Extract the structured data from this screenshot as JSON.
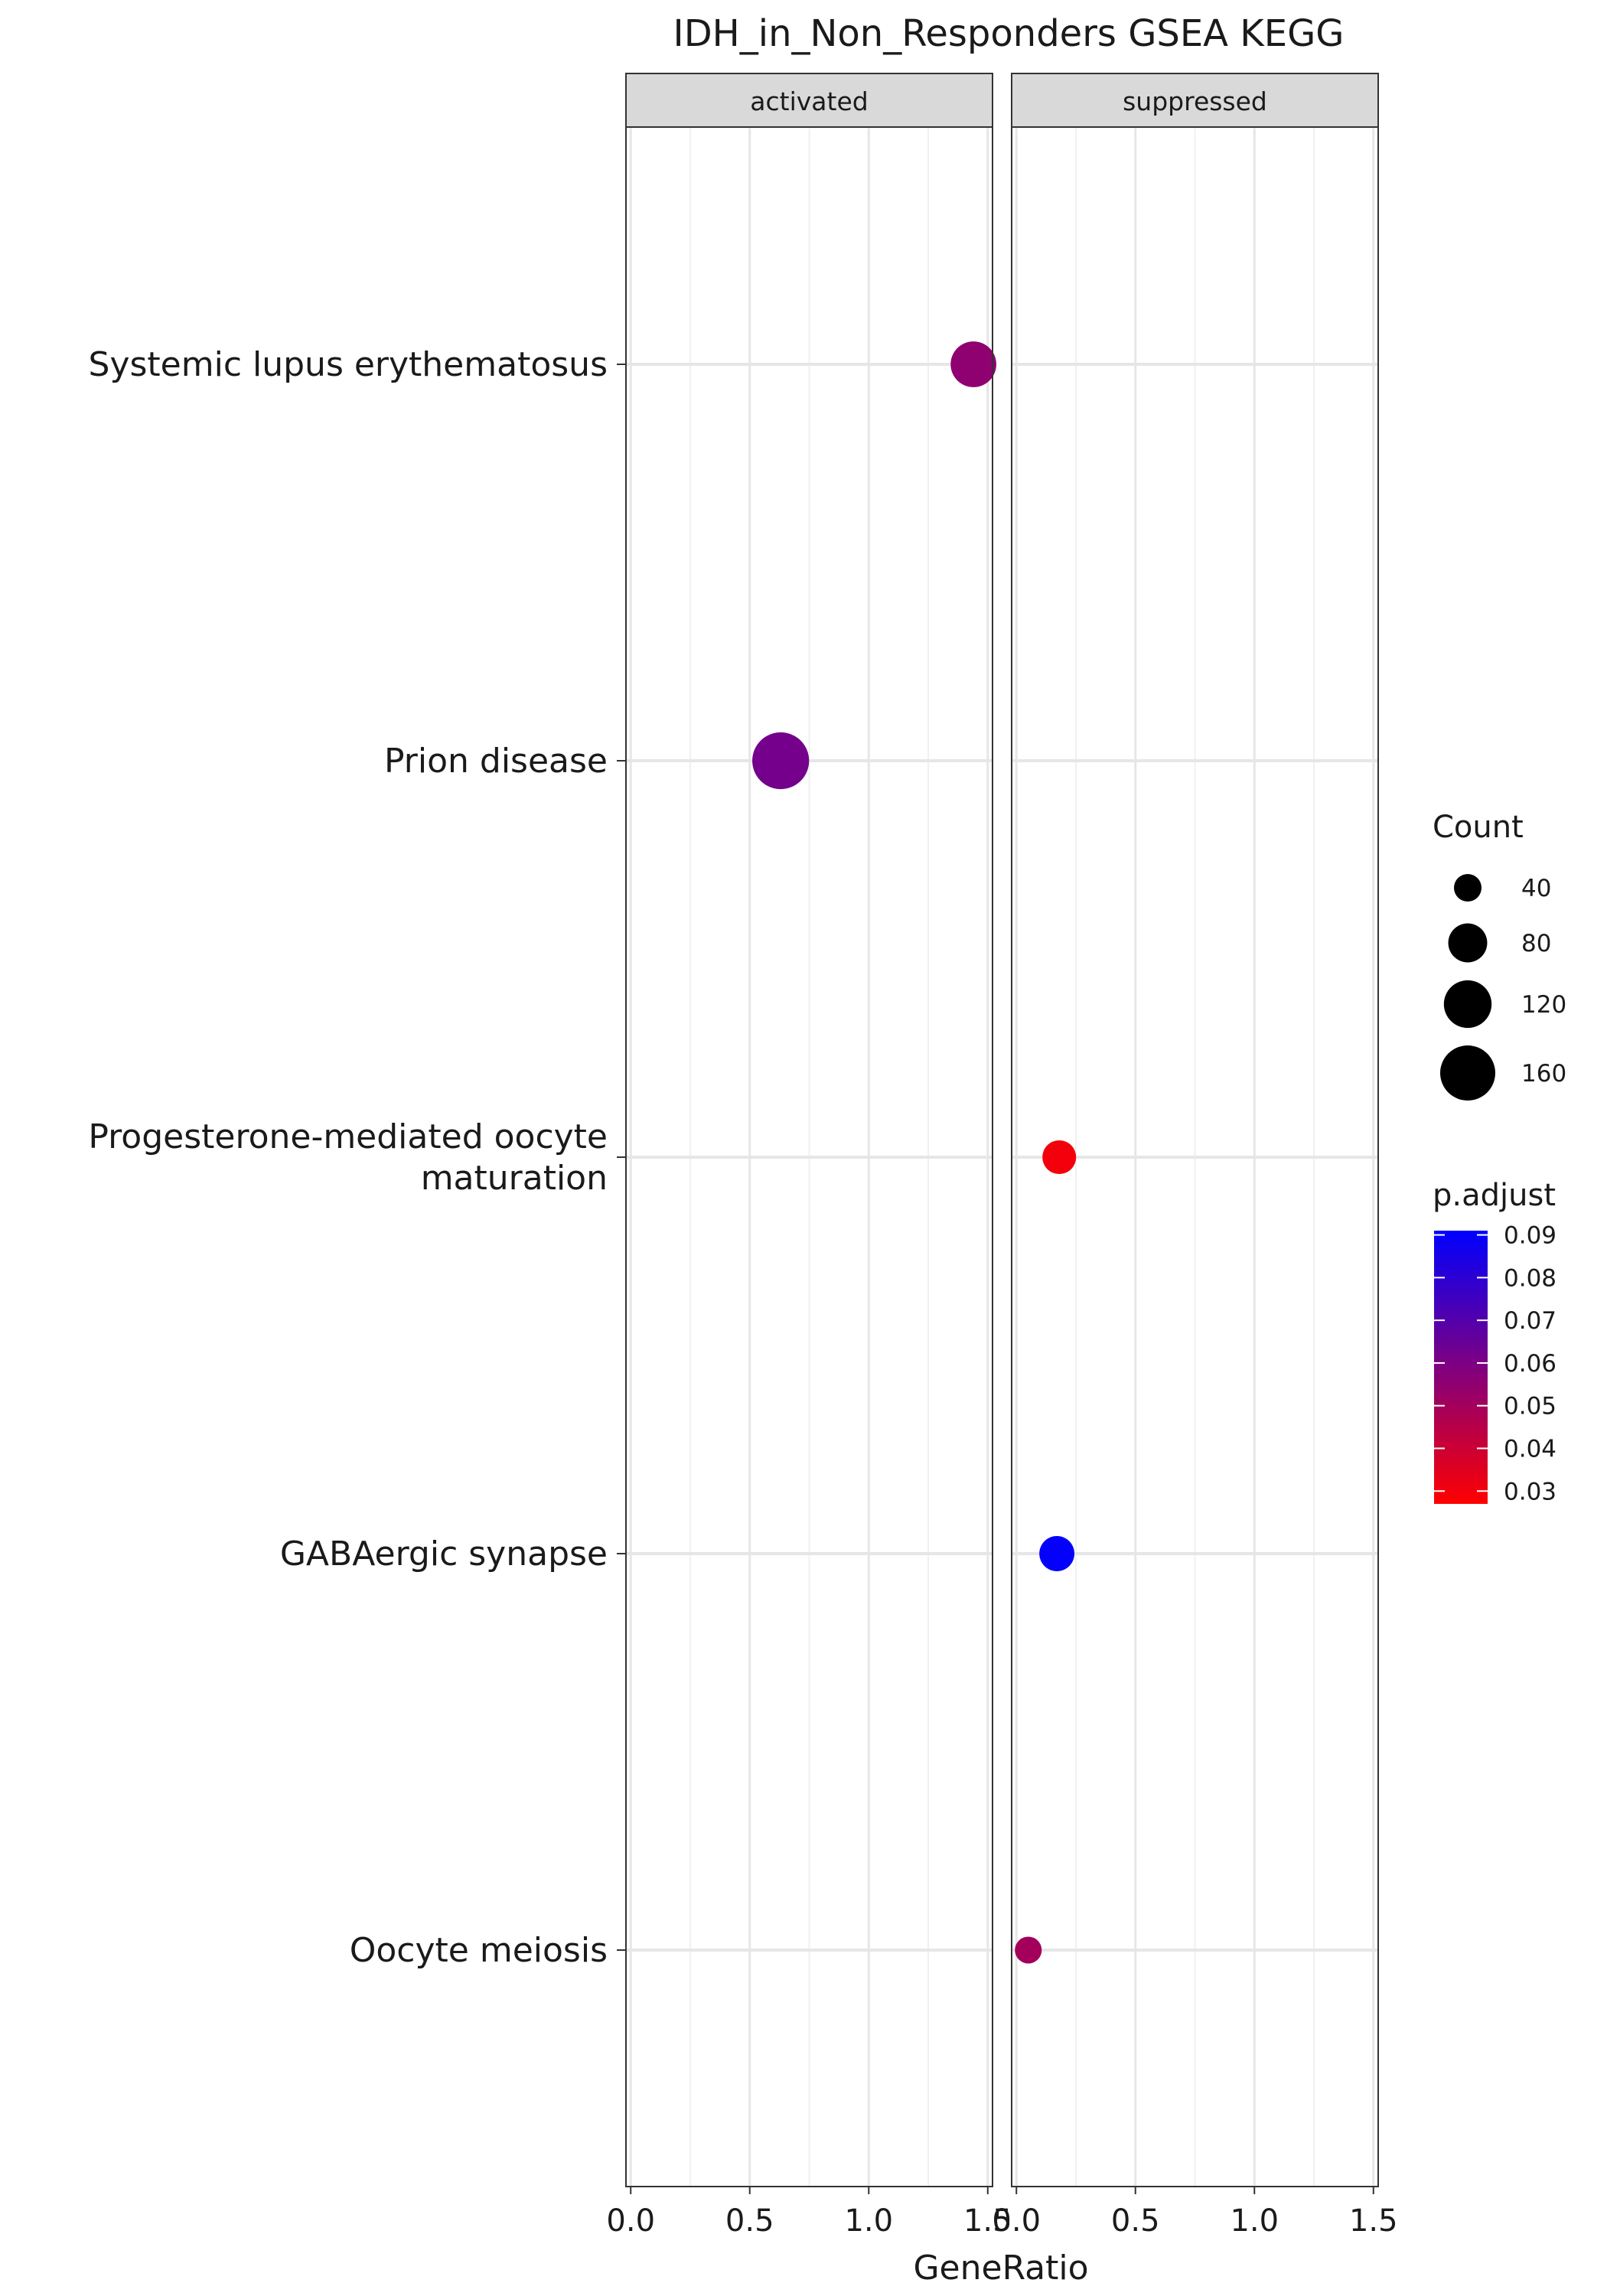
{
  "chart_data": {
    "type": "scatter",
    "title": "IDH_in_Non_Responders GSEA KEGG",
    "xlabel": "GeneRatio",
    "ylabel": "",
    "xlim": [
      -0.02,
      1.52
    ],
    "x_ticks": [
      0.0,
      0.5,
      1.0,
      1.5
    ],
    "x_tick_labels": [
      "0.0",
      "0.5",
      "1.0",
      "1.5"
    ],
    "grid": true,
    "facets": [
      "activated",
      "suppressed"
    ],
    "categories": [
      "Systemic lupus erythematosus",
      "Prion disease",
      "Progesterone-mediated oocyte maturation",
      "GABAergic synapse",
      "Oocyte meiosis"
    ],
    "category_lines": [
      [
        "Systemic lupus erythematosus"
      ],
      [
        "Prion disease"
      ],
      [
        "Progesterone-mediated oocyte",
        "maturation"
      ],
      [
        "GABAergic synapse"
      ],
      [
        "Oocyte meiosis"
      ]
    ],
    "points": [
      {
        "facet": "activated",
        "category": "Systemic lupus erythematosus",
        "x": 1.44,
        "count": 110,
        "p_adjust": 0.055
      },
      {
        "facet": "activated",
        "category": "Prion disease",
        "x": 0.63,
        "count": 170,
        "p_adjust": 0.062
      },
      {
        "facet": "suppressed",
        "category": "Progesterone-mediated oocyte maturation",
        "x": 0.18,
        "count": 60,
        "p_adjust": 0.03
      },
      {
        "facet": "suppressed",
        "category": "GABAergic synapse",
        "x": 0.17,
        "count": 65,
        "p_adjust": 0.09
      },
      {
        "facet": "suppressed",
        "category": "Oocyte meiosis",
        "x": 0.05,
        "count": 38,
        "p_adjust": 0.05
      }
    ],
    "legend_size": {
      "title": "Count",
      "values": [
        40,
        80,
        120,
        160
      ],
      "labels": [
        "40",
        "80",
        "120",
        "160"
      ]
    },
    "legend_color": {
      "title": "p.adjust",
      "min": 0.027,
      "max": 0.091,
      "low_color": "#ff0000",
      "high_color": "#0000ff",
      "ticks": [
        0.03,
        0.04,
        0.05,
        0.06,
        0.07,
        0.08,
        0.09
      ],
      "labels": [
        "0.03",
        "0.04",
        "0.05",
        "0.06",
        "0.07",
        "0.08",
        "0.09"
      ]
    }
  }
}
